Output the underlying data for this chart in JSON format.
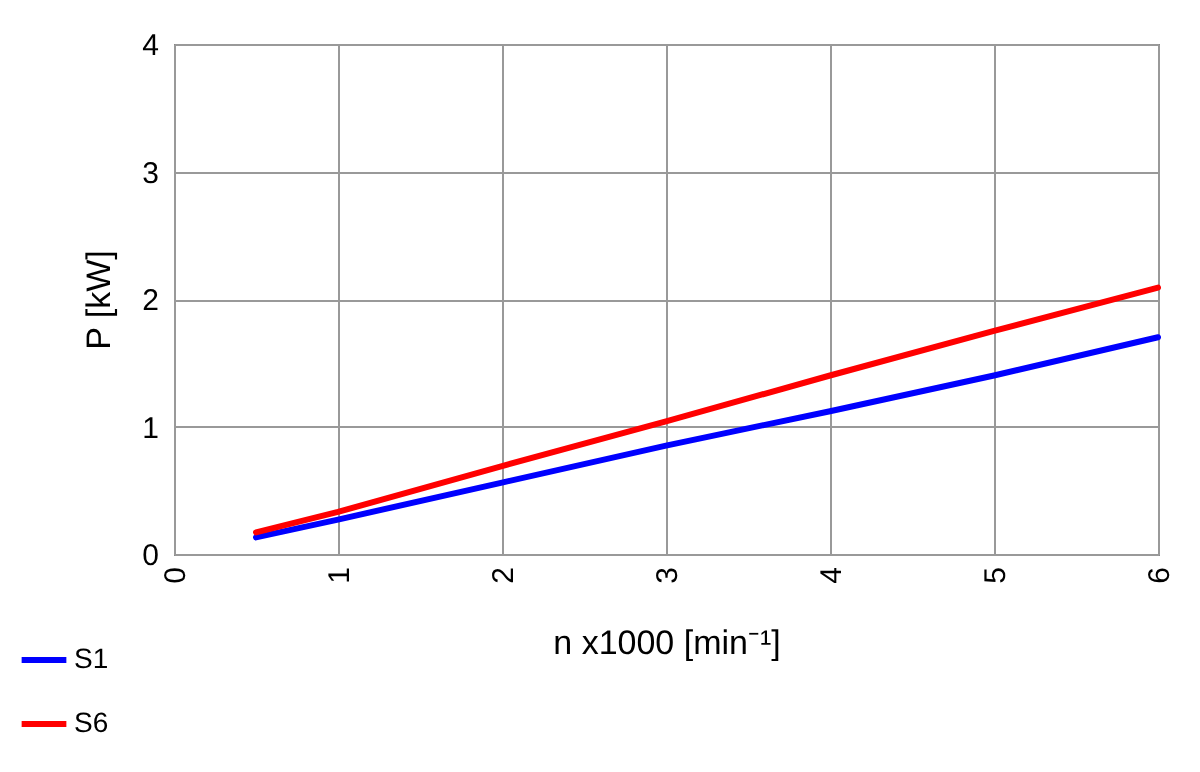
{
  "chart_data": {
    "type": "line",
    "xlabel": "n x1000  [min⁻¹]",
    "ylabel": "P [kW]",
    "x": [
      0.5,
      1,
      2,
      3,
      4,
      5,
      6
    ],
    "series": [
      {
        "name": "S1",
        "color": "#0000ff",
        "values": [
          0.13,
          0.27,
          0.56,
          0.85,
          1.12,
          1.4,
          1.7
        ]
      },
      {
        "name": "S6",
        "color": "#ff0000",
        "values": [
          0.17,
          0.33,
          0.69,
          1.04,
          1.4,
          1.75,
          2.09
        ]
      }
    ],
    "xlim": [
      0,
      6
    ],
    "xticks": [
      0,
      1,
      2,
      3,
      4,
      5,
      6
    ],
    "ylim": [
      0,
      4
    ],
    "yticks": [
      0,
      1,
      2,
      3,
      4
    ],
    "grid": true,
    "legend": "bottom left",
    "marker": "none",
    "line_style": "solid"
  }
}
